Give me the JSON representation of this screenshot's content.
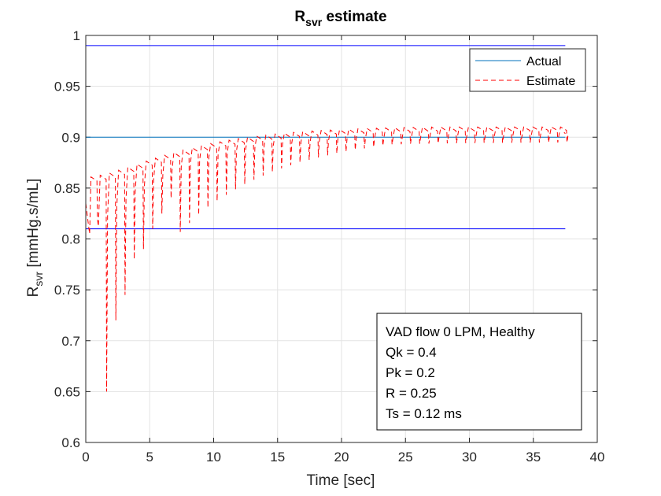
{
  "chart_data": {
    "type": "line",
    "title_main": "R",
    "title_sub": "svr",
    "title_rest": " estimate",
    "xlabel": "Time [sec]",
    "ylabel_main": "R",
    "ylabel_sub": "svr",
    "ylabel_rest": " [mmHg.s/mL]",
    "xlim": [
      0,
      40
    ],
    "ylim": [
      0.6,
      1
    ],
    "xticks": [
      "0",
      "5",
      "10",
      "15",
      "20",
      "25",
      "30",
      "35",
      "40"
    ],
    "yticks": [
      "0.6",
      "0.65",
      "0.7",
      "0.75",
      "0.8",
      "0.85",
      "0.9",
      "0.95",
      "1"
    ],
    "grid": true,
    "legend_position": "top-right",
    "series": [
      {
        "name": "Actual",
        "color": "#0072BD",
        "style": "solid",
        "x": [
          0,
          37.5
        ],
        "y": [
          0.9,
          0.9
        ]
      },
      {
        "name": "Estimate",
        "color": "#FF0000",
        "style": "dashed",
        "trend": {
          "start": 0.8,
          "end": 0.905,
          "tau": 6
        },
        "dip_lows_early": [
          0.82,
          0.65,
          0.72,
          0.745,
          0.78,
          0.79,
          0.81,
          0.825,
          0.84
        ],
        "dip_interval": 0.72,
        "x_end": 37.4
      }
    ],
    "bounds": {
      "color": "#0000FF",
      "values": [
        0.99,
        0.81
      ],
      "x": [
        0,
        37.5
      ]
    }
  },
  "annotation": {
    "lines": [
      "VAD flow 0 LPM, Healthy",
      "Qk = 0.4",
      "Pk = 0.2",
      "R = 0.25",
      "Ts = 0.12 ms"
    ]
  }
}
